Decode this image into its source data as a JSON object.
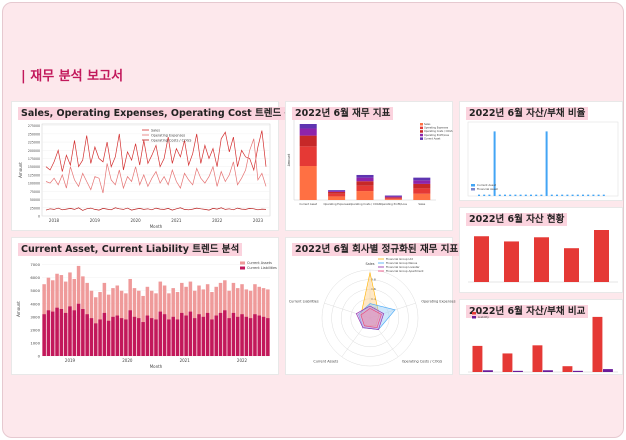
{
  "report": {
    "title": "| 재무 분석 보고서"
  },
  "panels": {
    "trend": {
      "title": "Sales, Operating Expenses, Operating Cost 트렌드 분석"
    },
    "indicators": {
      "title": "2022년 6월 재무 지표"
    },
    "ratio": {
      "title": "2022년 6월 자산/부채 비율"
    },
    "asset_liability_trend": {
      "title": "Current Asset, Current Liability 트렌드 분석"
    },
    "normalized": {
      "title": "2022년 6월 회사별 정규화된 재무 지표"
    },
    "asset_status": {
      "title": "2022년 6월 자산 현황"
    },
    "compare": {
      "title": "2022년 6월 자산/부채 비교"
    }
  },
  "colors": {
    "accent": "#c2185b",
    "bar_red": "#e53935",
    "bar_purple": "#6a1b9a",
    "salmon": "#ef9a9a",
    "deep_pink": "#c2185b",
    "orange": "#ff7043",
    "blue": "#42a5f5"
  },
  "chart_data": [
    {
      "type": "line",
      "xlabel": "Month",
      "ylabel": "Amount",
      "y_ticks": [
        "0",
        "25000",
        "50000",
        "75000",
        "100000",
        "125000",
        "150000",
        "175000",
        "200000",
        "225000",
        "250000",
        "275000"
      ],
      "x_ticks": [
        "2018",
        "2019",
        "2020",
        "2021",
        "2022",
        "2023"
      ],
      "ylim": [
        0,
        280000
      ],
      "legend": [
        "Sales",
        "Operating Expenses",
        "Operating Costs / COGS"
      ],
      "series": [
        {
          "name": "Sales",
          "values": [
            150000,
            140000,
            165000,
            200000,
            135000,
            185000,
            155000,
            230000,
            150000,
            170000,
            245000,
            160000,
            210000,
            175000,
            165000,
            225000,
            150000,
            180000,
            250000,
            140000,
            195000,
            170000,
            220000,
            155000,
            230000,
            160000,
            185000,
            215000,
            150000,
            175000,
            240000,
            160000,
            205000,
            180000,
            230000,
            155000,
            190000,
            250000,
            160000,
            215000,
            175000,
            205000,
            150000,
            235000,
            255000,
            195000,
            240000,
            150000,
            200000,
            180000,
            175000,
            140000,
            210000,
            260000,
            150000
          ]
        },
        {
          "name": "Operating Expenses",
          "values": [
            105000,
            100000,
            115000,
            95000,
            125000,
            85000,
            150000,
            110000,
            90000,
            130000,
            105000,
            80000,
            120000,
            115000,
            70000,
            160000,
            110000,
            95000,
            140000,
            85000,
            120000,
            105000,
            150000,
            95000,
            125000,
            90000,
            115000,
            135000,
            100000,
            120000,
            95000,
            140000,
            105000,
            85000,
            130000,
            110000,
            95000,
            145000,
            115000,
            100000,
            120000,
            150000,
            90000,
            135000,
            105000,
            125000,
            165000,
            95000,
            115000,
            140000,
            200000,
            235000,
            110000,
            130000,
            90000
          ]
        },
        {
          "name": "Operating Costs / COGS",
          "values": [
            18000,
            22000,
            20000,
            24000,
            19000,
            21000,
            23000,
            20000,
            25000,
            17000,
            22000,
            24000,
            20000,
            18000,
            23000,
            21000,
            19000,
            25000,
            22000,
            20000,
            24000,
            18000,
            21000,
            23000,
            20000,
            22000,
            19000,
            24000,
            21000,
            20000,
            23000,
            18000,
            22000,
            25000,
            20000,
            19000,
            21000,
            24000,
            22000,
            20000,
            18000,
            23000,
            21000,
            25000,
            20000,
            22000,
            19000,
            24000,
            21000,
            20000,
            23000,
            22000,
            19000,
            21000,
            20000
          ]
        }
      ]
    },
    {
      "type": "bar",
      "stacked": true,
      "ylabel": "Amount",
      "categories": [
        "Current Asset",
        "Operating Expenses",
        "Operating Costs / COGS",
        "Operating Profit/Loss",
        "Sales"
      ],
      "legend": [
        "Sales",
        "Operating Expenses",
        "Operating Costs / COGS",
        "Operating Profit/Loss",
        "Current Asset"
      ],
      "series": [
        {
          "name": "Sales",
          "values": [
            38,
            4,
            10,
            1,
            7
          ]
        },
        {
          "name": "Operating Expenses",
          "values": [
            22,
            3,
            6,
            1,
            6
          ]
        },
        {
          "name": "Operating Costs / COGS",
          "values": [
            12,
            2,
            5,
            1,
            5
          ]
        },
        {
          "name": "Operating Profit/Loss",
          "values": [
            8,
            1,
            4,
            1,
            4
          ]
        },
        {
          "name": "Current Asset",
          "values": [
            5,
            1,
            3,
            1,
            3
          ]
        }
      ]
    },
    {
      "type": "bar",
      "legend": [
        "Current Asset",
        "Financial Asset"
      ],
      "series": [
        {
          "name": "Current Asset",
          "values": [
            0.02,
            0.02,
            0.02,
            0.95,
            0.02,
            0.02,
            0.02,
            0.02,
            0.02,
            0.02,
            0.02,
            0.02,
            0.02,
            0.95,
            0.02,
            0.02,
            0.02,
            0.02,
            0.02,
            0.02,
            0.02,
            0.02,
            0.02,
            0.02,
            0.02
          ]
        }
      ]
    },
    {
      "type": "bar",
      "legend": [
        "Current Assets",
        "Current Liabilities"
      ],
      "xlabel": "Month",
      "ylabel": "Amount",
      "y_ticks": [
        "0",
        "1000",
        "2000",
        "3000",
        "4000",
        "5000",
        "6000",
        "7000"
      ],
      "x_ticks": [
        "2019",
        "2020",
        "2021",
        "2022"
      ],
      "ylim": [
        0,
        7200
      ],
      "series": [
        {
          "name": "Current Assets",
          "values": [
            5500,
            6000,
            5800,
            6300,
            6200,
            5700,
            6400,
            5900,
            6900,
            6100,
            5600,
            5000,
            4500,
            4900,
            5600,
            4700,
            5200,
            5400,
            5000,
            4800,
            5900,
            5200,
            5000,
            4600,
            5300,
            5000,
            4800,
            5700,
            5400,
            4800,
            5200,
            4900,
            5600,
            5300,
            5700,
            5000,
            5400,
            5100,
            5500,
            4900,
            5300,
            5600,
            5800,
            5000,
            5600,
            5200,
            5500,
            5100,
            5000,
            5500,
            5300,
            5200,
            5100
          ]
        },
        {
          "name": "Current Liabilities",
          "values": [
            3200,
            3500,
            3400,
            3700,
            3600,
            3300,
            3800,
            3500,
            4000,
            3600,
            3200,
            2900,
            2500,
            2800,
            3300,
            2700,
            3000,
            3100,
            2900,
            2800,
            3500,
            3000,
            2900,
            2600,
            3100,
            2900,
            2800,
            3400,
            3200,
            2800,
            3000,
            2800,
            3300,
            3100,
            3400,
            2900,
            3200,
            3000,
            3300,
            2800,
            3100,
            3300,
            3500,
            2900,
            3300,
            3000,
            3200,
            3000,
            2900,
            3200,
            3100,
            3000,
            2900
          ]
        }
      ]
    },
    {
      "type": "radar",
      "axes": [
        "Sales",
        "Operating Expenses",
        "Operating Costs / COGS",
        "Current Assets",
        "Current Liabilities"
      ],
      "ring_labels": [
        "0.2",
        "0.4",
        "0.6",
        "0.8"
      ],
      "legend": [
        "Financial Group Ltd",
        "Financial Group Nexus",
        "Financial Group Livestar",
        "Financial Group Apartment"
      ],
      "series": [
        {
          "name": "Financial Group Ltd",
          "values": [
            0.95,
            0.2,
            0.2,
            0.2,
            0.2
          ]
        },
        {
          "name": "Financial Group Nexus",
          "values": [
            0.3,
            0.55,
            0.3,
            0.25,
            0.25
          ]
        },
        {
          "name": "Financial Group Livestar",
          "values": [
            0.25,
            0.3,
            0.3,
            0.25,
            0.3
          ]
        },
        {
          "name": "Financial Group Apartment",
          "values": [
            0.2,
            0.25,
            0.25,
            0.2,
            0.2
          ]
        }
      ]
    },
    {
      "type": "bar",
      "values": [
        0.88,
        0.78,
        0.86,
        0.65,
        1.0
      ]
    },
    {
      "type": "bar",
      "legend": [
        "Asset",
        "Liability"
      ],
      "series": [
        {
          "name": "Asset",
          "values": [
            0.45,
            0.32,
            0.46,
            0.1,
            0.95
          ]
        },
        {
          "name": "Liability",
          "values": [
            0.03,
            0.02,
            0.03,
            0.02,
            0.05
          ]
        }
      ]
    }
  ]
}
